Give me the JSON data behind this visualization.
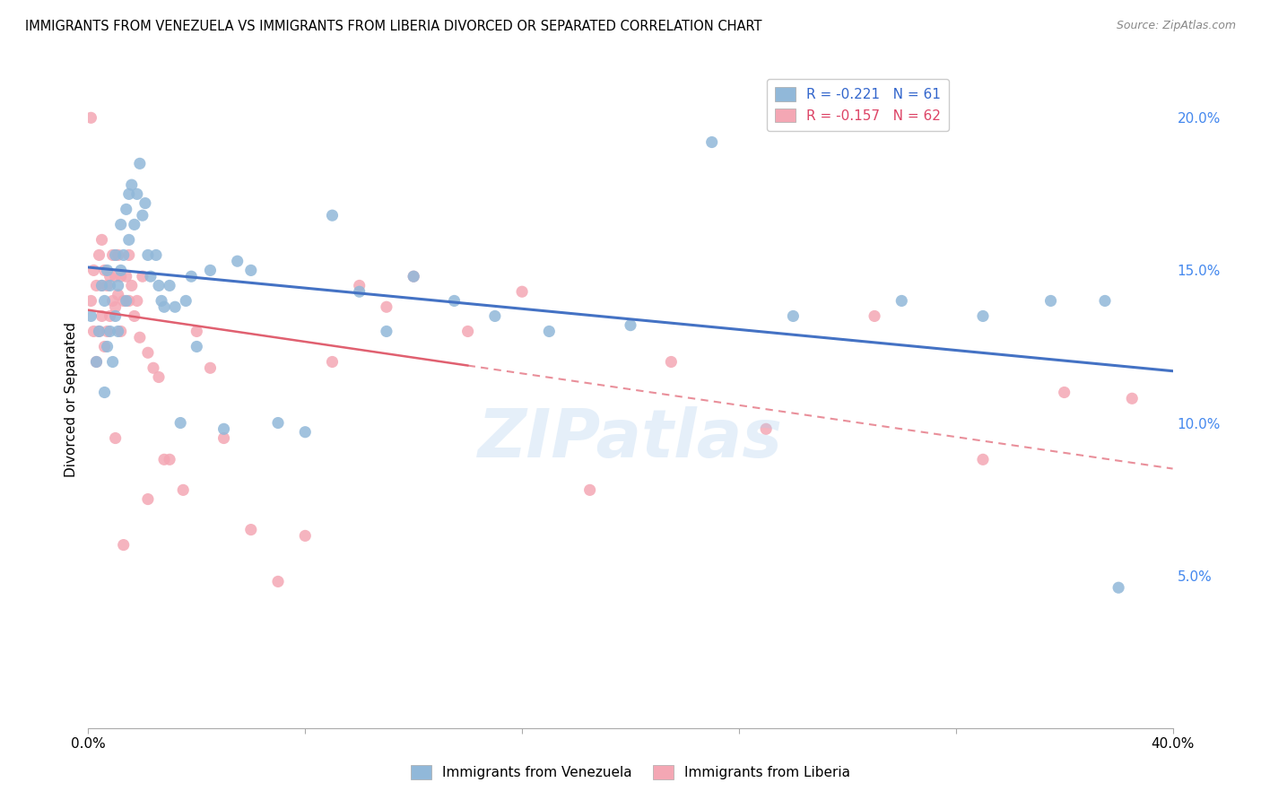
{
  "title": "IMMIGRANTS FROM VENEZUELA VS IMMIGRANTS FROM LIBERIA DIVORCED OR SEPARATED CORRELATION CHART",
  "source": "Source: ZipAtlas.com",
  "ylabel": "Divorced or Separated",
  "yticks": [
    0.0,
    0.05,
    0.1,
    0.15,
    0.2
  ],
  "ytick_labels": [
    "",
    "5.0%",
    "10.0%",
    "15.0%",
    "20.0%"
  ],
  "xticks": [
    0.0,
    0.08,
    0.16,
    0.24,
    0.32,
    0.4
  ],
  "xtick_labels": [
    "0.0%",
    "",
    "",
    "",
    "",
    "40.0%"
  ],
  "xlim": [
    0.0,
    0.4
  ],
  "ylim": [
    0.0,
    0.215
  ],
  "legend_blue_label": "R = -0.221   N = 61",
  "legend_pink_label": "R = -0.157   N = 62",
  "blue_color": "#91B8D9",
  "pink_color": "#F4A7B4",
  "blue_line_color": "#4472C4",
  "pink_line_color": "#E06070",
  "watermark": "ZIPatlas",
  "bottom_legend_blue": "Immigrants from Venezuela",
  "bottom_legend_pink": "Immigrants from Liberia",
  "blue_x": [
    0.001,
    0.003,
    0.004,
    0.005,
    0.006,
    0.006,
    0.007,
    0.007,
    0.008,
    0.008,
    0.009,
    0.01,
    0.01,
    0.011,
    0.011,
    0.012,
    0.012,
    0.013,
    0.014,
    0.014,
    0.015,
    0.015,
    0.016,
    0.017,
    0.018,
    0.019,
    0.02,
    0.021,
    0.022,
    0.023,
    0.025,
    0.026,
    0.027,
    0.028,
    0.03,
    0.032,
    0.034,
    0.036,
    0.038,
    0.04,
    0.045,
    0.05,
    0.055,
    0.06,
    0.07,
    0.08,
    0.09,
    0.1,
    0.11,
    0.12,
    0.135,
    0.15,
    0.17,
    0.2,
    0.23,
    0.26,
    0.3,
    0.33,
    0.355,
    0.375,
    0.38
  ],
  "blue_y": [
    0.135,
    0.12,
    0.13,
    0.145,
    0.11,
    0.14,
    0.125,
    0.15,
    0.13,
    0.145,
    0.12,
    0.135,
    0.155,
    0.13,
    0.145,
    0.15,
    0.165,
    0.155,
    0.14,
    0.17,
    0.175,
    0.16,
    0.178,
    0.165,
    0.175,
    0.185,
    0.168,
    0.172,
    0.155,
    0.148,
    0.155,
    0.145,
    0.14,
    0.138,
    0.145,
    0.138,
    0.1,
    0.14,
    0.148,
    0.125,
    0.15,
    0.098,
    0.153,
    0.15,
    0.1,
    0.097,
    0.168,
    0.143,
    0.13,
    0.148,
    0.14,
    0.135,
    0.13,
    0.132,
    0.192,
    0.135,
    0.14,
    0.135,
    0.14,
    0.14,
    0.046
  ],
  "pink_x": [
    0.001,
    0.001,
    0.002,
    0.002,
    0.003,
    0.003,
    0.004,
    0.004,
    0.005,
    0.005,
    0.005,
    0.006,
    0.006,
    0.007,
    0.007,
    0.008,
    0.008,
    0.009,
    0.009,
    0.01,
    0.01,
    0.011,
    0.011,
    0.012,
    0.012,
    0.013,
    0.014,
    0.015,
    0.015,
    0.016,
    0.017,
    0.018,
    0.019,
    0.02,
    0.022,
    0.024,
    0.026,
    0.028,
    0.03,
    0.035,
    0.04,
    0.045,
    0.05,
    0.06,
    0.07,
    0.08,
    0.09,
    0.1,
    0.11,
    0.12,
    0.14,
    0.16,
    0.185,
    0.215,
    0.25,
    0.29,
    0.33,
    0.36,
    0.385,
    0.01,
    0.013,
    0.022
  ],
  "pink_y": [
    0.2,
    0.14,
    0.13,
    0.15,
    0.12,
    0.145,
    0.13,
    0.155,
    0.145,
    0.135,
    0.16,
    0.125,
    0.15,
    0.145,
    0.13,
    0.135,
    0.148,
    0.14,
    0.155,
    0.138,
    0.148,
    0.142,
    0.155,
    0.13,
    0.148,
    0.14,
    0.148,
    0.155,
    0.14,
    0.145,
    0.135,
    0.14,
    0.128,
    0.148,
    0.123,
    0.118,
    0.115,
    0.088,
    0.088,
    0.078,
    0.13,
    0.118,
    0.095,
    0.065,
    0.048,
    0.063,
    0.12,
    0.145,
    0.138,
    0.148,
    0.13,
    0.143,
    0.078,
    0.12,
    0.098,
    0.135,
    0.088,
    0.11,
    0.108,
    0.095,
    0.06,
    0.075
  ]
}
